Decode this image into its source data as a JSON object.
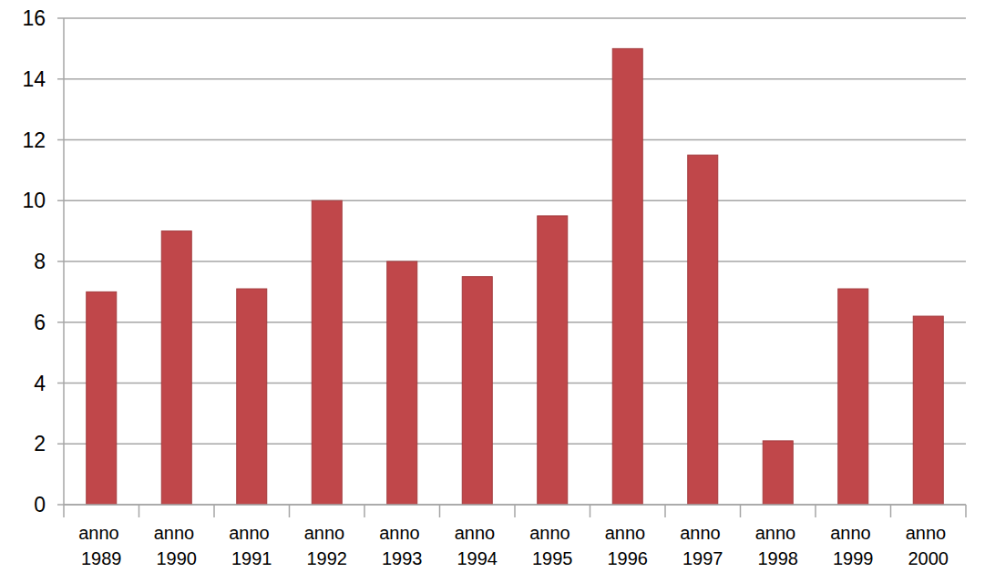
{
  "chart_data": {
    "type": "bar",
    "categories": [
      "anno 1989",
      "anno 1990",
      "anno 1991",
      "anno 1992",
      "anno 1993",
      "anno 1994",
      "anno 1995",
      "anno 1996",
      "anno 1997",
      "anno 1998",
      "anno 1999",
      "anno 2000"
    ],
    "values": [
      7,
      9,
      7.1,
      10,
      8,
      7.5,
      9.5,
      15,
      11.5,
      2.1,
      7.1,
      6.2
    ],
    "color": "#c0474a",
    "ylim": [
      0,
      16
    ],
    "yticks": [
      0,
      2,
      4,
      6,
      8,
      10,
      12,
      14,
      16
    ],
    "grid": true
  }
}
